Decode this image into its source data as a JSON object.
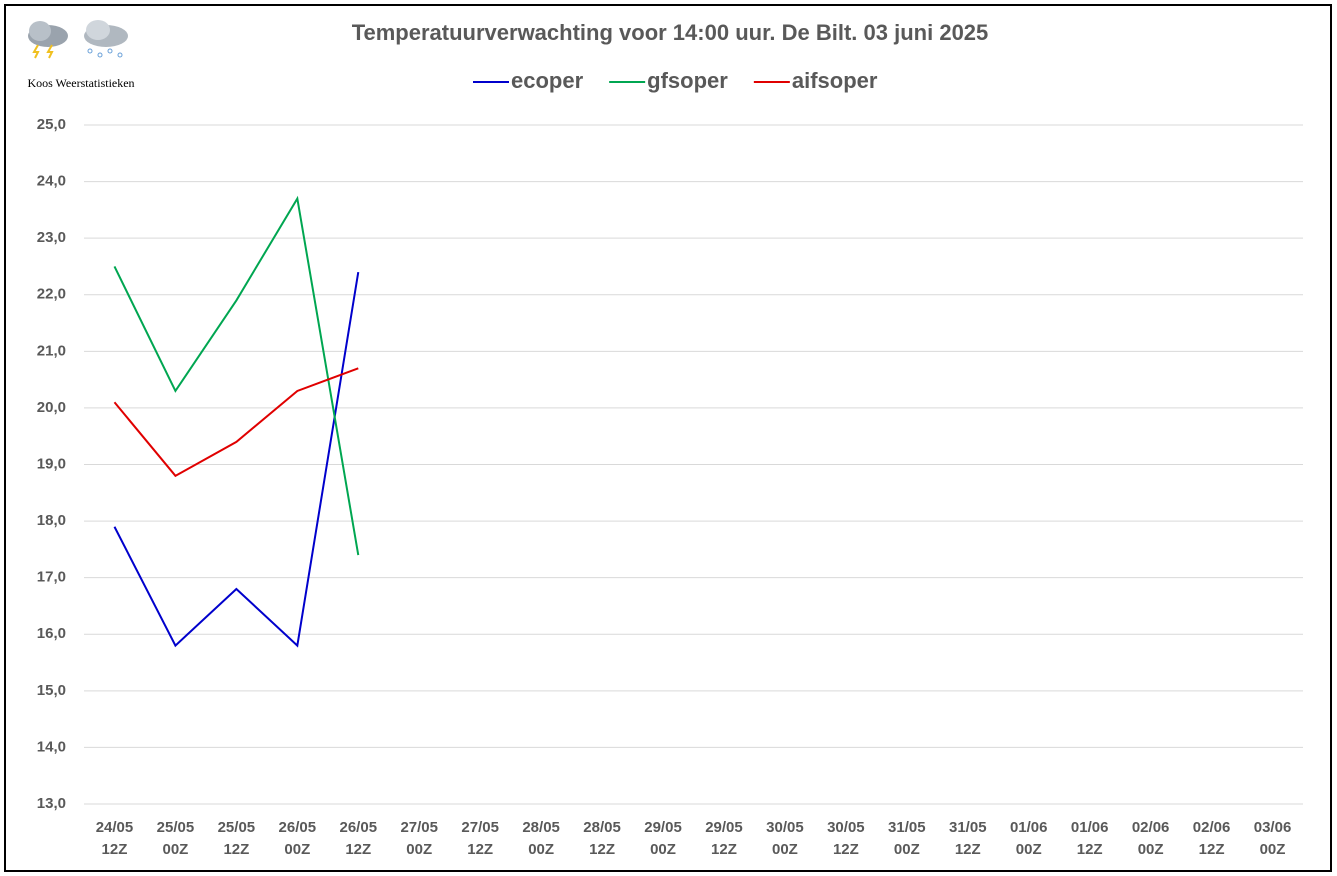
{
  "chart_data": {
    "type": "line",
    "title": "Temperatuurverwachting voor 14:00 uur. De Bilt. 03 juni 2025",
    "watermark": "Koos Weerstatistieken",
    "categories": [
      "24/05 12Z",
      "25/05 00Z",
      "25/05 12Z",
      "26/05 00Z",
      "26/05 12Z",
      "27/05 00Z",
      "27/05 12Z",
      "28/05 00Z",
      "28/05 12Z",
      "29/05 00Z",
      "29/05 12Z",
      "30/05 00Z",
      "30/05 12Z",
      "31/05 00Z",
      "31/05 12Z",
      "01/06 00Z",
      "01/06 12Z",
      "02/06 00Z",
      "02/06 12Z",
      "03/06 00Z"
    ],
    "series": [
      {
        "name": "ecoper",
        "color": "#0000cc",
        "values": [
          17.9,
          15.8,
          16.8,
          15.8,
          22.4,
          null,
          null,
          null,
          null,
          null,
          null,
          null,
          null,
          null,
          null,
          null,
          null,
          null,
          null,
          null
        ]
      },
      {
        "name": "gfsoper",
        "color": "#00a651",
        "values": [
          22.5,
          20.3,
          21.9,
          23.7,
          17.4,
          null,
          null,
          null,
          null,
          null,
          null,
          null,
          null,
          null,
          null,
          null,
          null,
          null,
          null,
          null
        ]
      },
      {
        "name": "aifsoper",
        "color": "#e00000",
        "values": [
          20.1,
          18.8,
          19.4,
          20.3,
          20.7,
          null,
          null,
          null,
          null,
          null,
          null,
          null,
          null,
          null,
          null,
          null,
          null,
          null,
          null,
          null
        ]
      }
    ],
    "ylim": [
      13,
      25
    ],
    "yticks": [
      {
        "value": 13,
        "label": "13,0"
      },
      {
        "value": 14,
        "label": "14,0"
      },
      {
        "value": 15,
        "label": "15,0"
      },
      {
        "value": 16,
        "label": "16,0"
      },
      {
        "value": 17,
        "label": "17,0"
      },
      {
        "value": 18,
        "label": "18,0"
      },
      {
        "value": 19,
        "label": "19,0"
      },
      {
        "value": 20,
        "label": "20,0"
      },
      {
        "value": 21,
        "label": "21,0"
      },
      {
        "value": 22,
        "label": "22,0"
      },
      {
        "value": 23,
        "label": "23,0"
      },
      {
        "value": 24,
        "label": "24,0"
      },
      {
        "value": 25,
        "label": "25,0"
      }
    ],
    "grid": true,
    "legend": "top"
  }
}
